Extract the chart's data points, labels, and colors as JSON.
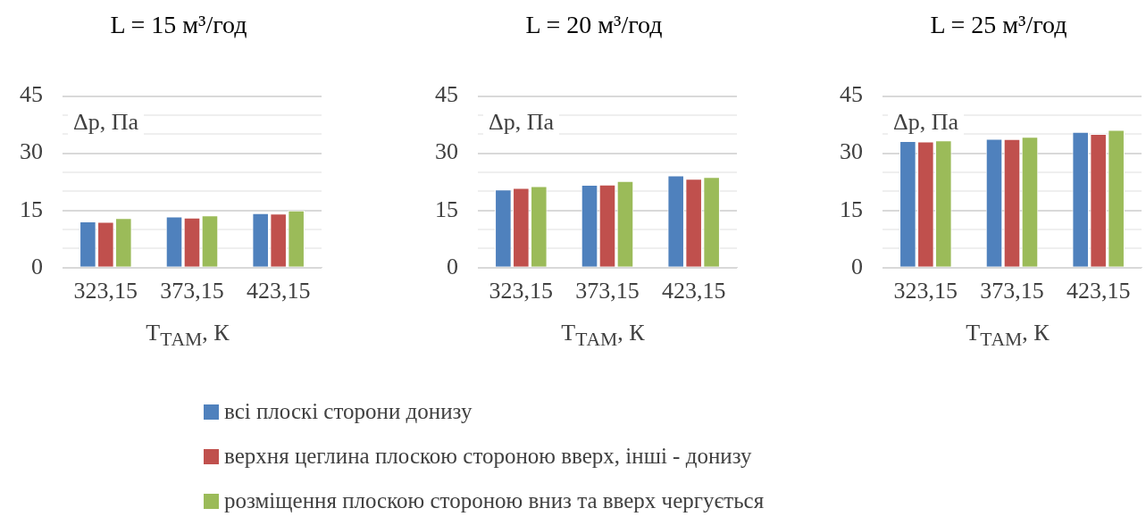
{
  "chart_data": [
    {
      "type": "bar",
      "title": "L = 15 м³/год",
      "xlabel": "T$_{ТАМ}$, К",
      "ylabel": "Δp, Па",
      "categories": [
        "323,15",
        "373,15",
        "423,15"
      ],
      "ylim": [
        0,
        45
      ],
      "yticks": [
        0,
        {
          "value": 5,
          "label": null
        },
        {
          "value": 10,
          "label": null
        },
        15,
        {
          "value": 20,
          "label": null
        },
        {
          "value": 25,
          "label": null
        },
        30,
        {
          "value": 35,
          "label": null
        },
        {
          "value": 40,
          "label": null
        },
        45
      ],
      "grid": "y",
      "legend": "bottom",
      "series": [
        {
          "name": "всі плоскі сторони донизу",
          "color": "#4f81bd",
          "values": [
            12.1,
            13.4,
            14.3
          ]
        },
        {
          "name": "верхня цеглина плоскою стороною вверх, інші - донизу",
          "color": "#c0504d",
          "values": [
            12.0,
            13.1,
            14.2
          ]
        },
        {
          "name": "розміщення плоскою стороною вниз та вверх чергується",
          "color": "#9bbb59",
          "values": [
            13.0,
            13.7,
            15.0
          ]
        }
      ]
    },
    {
      "type": "bar",
      "title": "L = 20 м³/год",
      "xlabel": "T$_{ТАМ}$, К",
      "ylabel": "Δp, Па",
      "categories": [
        "323,15",
        "373,15",
        "423,15"
      ],
      "ylim": [
        0,
        45
      ],
      "yticks": [
        0,
        {
          "value": 5,
          "label": null
        },
        {
          "value": 10,
          "label": null
        },
        15,
        {
          "value": 20,
          "label": null
        },
        {
          "value": 25,
          "label": null
        },
        30,
        {
          "value": 35,
          "label": null
        },
        {
          "value": 40,
          "label": null
        },
        45
      ],
      "grid": "y",
      "series": [
        {
          "color": "#4f81bd",
          "values": [
            20.5,
            21.7,
            24.2
          ]
        },
        {
          "color": "#c0504d",
          "values": [
            20.9,
            21.8,
            23.3
          ]
        },
        {
          "color": "#9bbb59",
          "values": [
            21.4,
            22.7,
            23.8
          ]
        }
      ]
    },
    {
      "type": "bar",
      "title": "L = 25 м³/год",
      "xlabel": "T$_{ТАМ}$, К",
      "ylabel": "Δp, Па",
      "categories": [
        "323,15",
        "373,15",
        "423,15"
      ],
      "ylim": [
        0,
        45
      ],
      "yticks": [
        0,
        {
          "value": 5,
          "label": null
        },
        {
          "value": 10,
          "label": null
        },
        15,
        {
          "value": 20,
          "label": null
        },
        {
          "value": 25,
          "label": null
        },
        30,
        {
          "value": 35,
          "label": null
        },
        {
          "value": 40,
          "label": null
        },
        45
      ],
      "grid": "y",
      "series": [
        {
          "color": "#4f81bd",
          "values": [
            33.2,
            33.8,
            35.6
          ]
        },
        {
          "color": "#c0504d",
          "values": [
            33.1,
            33.7,
            35.1
          ]
        },
        {
          "color": "#9bbb59",
          "values": [
            33.4,
            34.3,
            36.1
          ]
        }
      ]
    }
  ]
}
